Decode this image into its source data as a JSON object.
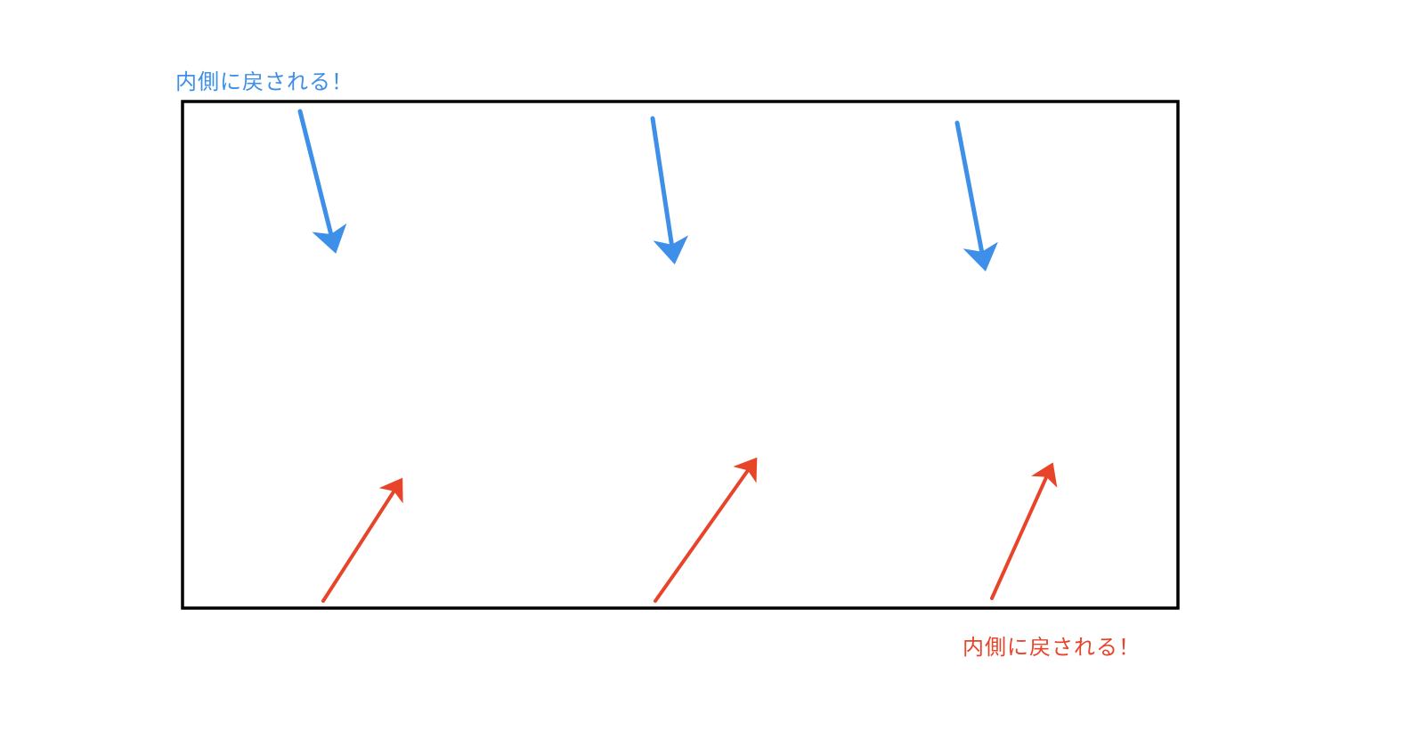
{
  "labels": {
    "top": "内側に戻される！",
    "bottom": "内側に戻される！"
  },
  "colors": {
    "top_arrows": "#3d8fe8",
    "bottom_arrows": "#e8442a",
    "boundary": "#000000"
  },
  "top_arrows_direction": "down-inward",
  "bottom_arrows_direction": "up-inward"
}
